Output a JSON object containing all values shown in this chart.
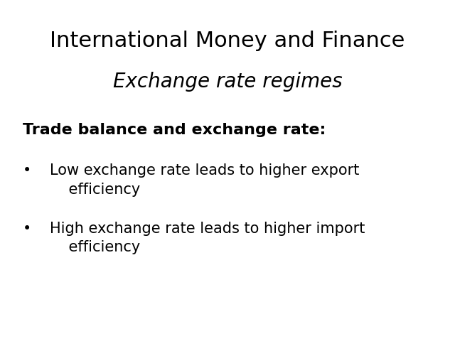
{
  "background_color": "#ffffff",
  "title_line1": "International Money and Finance",
  "title_line2": "Exchange rate regimes",
  "title_line1_fontsize": 22,
  "title_line2_fontsize": 20,
  "title_line1_style": "normal",
  "title_line2_style": "italic",
  "title_color": "#000000",
  "section_header": "Trade balance and exchange rate:",
  "section_header_fontsize": 16,
  "section_header_color": "#000000",
  "bullet_line1a": "Low exchange rate leads to higher export",
  "bullet_line1b": "    efficiency",
  "bullet_line2a": "High exchange rate leads to higher import",
  "bullet_line2b": "    efficiency",
  "bullet_fontsize": 15,
  "bullet_color": "#000000",
  "bullet_symbol": "•"
}
